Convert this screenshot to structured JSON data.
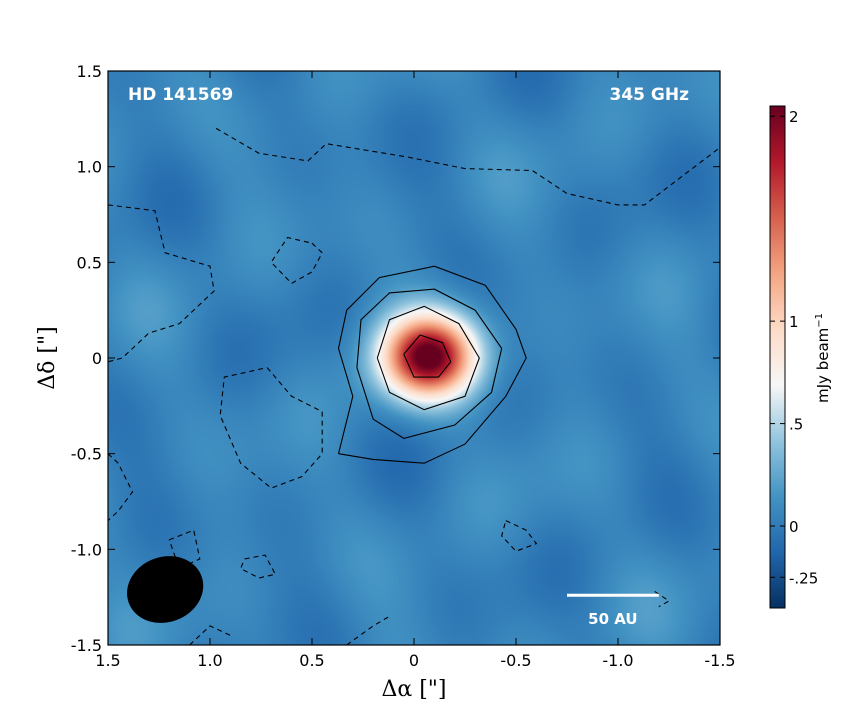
{
  "chart_data": {
    "type": "heatmap",
    "title": "",
    "target_label": "HD 141569",
    "frequency_label": "345 GHz",
    "xlabel": "Δα [\"]",
    "ylabel": "Δδ [\"]",
    "xlim": [
      1.5,
      -1.5
    ],
    "ylim": [
      -1.5,
      1.5
    ],
    "x_ticks": [
      1.5,
      1.0,
      0.5,
      0.0,
      -0.5,
      -1.0,
      -1.5
    ],
    "x_tick_labels": [
      "1.5",
      "1.0",
      "0.5",
      "0",
      "-0.5",
      "-1.0",
      "-1.5"
    ],
    "y_ticks": [
      1.5,
      1.0,
      0.5,
      0.0,
      -0.5,
      -1.0,
      -1.5
    ],
    "y_tick_labels": [
      "1.5",
      "1.0",
      "0.5",
      "0",
      "-0.5",
      "-1.0",
      "-1.5"
    ],
    "colorbar": {
      "label": "mJy beam−1",
      "range": [
        -0.4,
        2.05
      ],
      "ticks": [
        2,
        1,
        0.5,
        0,
        -0.25
      ],
      "tick_labels": [
        "2",
        "1",
        ".5",
        "0",
        "-.25"
      ],
      "colormap": [
        "#053061",
        "#2166ac",
        "#4393c3",
        "#92c5de",
        "#f7f7f7",
        "#fddbc7",
        "#f4a582",
        "#d6604d",
        "#b2182b",
        "#67001f"
      ]
    },
    "source": {
      "x": -0.07,
      "y": 0.01,
      "peak": 2.0,
      "sigma_x": 0.16,
      "sigma_y": 0.15
    },
    "background_level": 0.05,
    "contour_levels_solid": [
      0.3,
      0.7,
      1.2,
      1.7
    ],
    "contour_levels_dashed": [
      -0.15
    ],
    "solid_contours": [
      [
        [
          0.37,
          -0.5
        ],
        [
          0.3,
          -0.2
        ],
        [
          0.37,
          0.05
        ],
        [
          0.33,
          0.25
        ],
        [
          0.17,
          0.42
        ],
        [
          -0.1,
          0.48
        ],
        [
          -0.35,
          0.38
        ],
        [
          -0.5,
          0.15
        ],
        [
          -0.55,
          0.0
        ],
        [
          -0.45,
          -0.2
        ],
        [
          -0.25,
          -0.45
        ],
        [
          -0.05,
          -0.55
        ],
        [
          0.2,
          -0.53
        ],
        [
          0.37,
          -0.5
        ]
      ],
      [
        [
          0.28,
          -0.05
        ],
        [
          0.26,
          0.2
        ],
        [
          0.12,
          0.34
        ],
        [
          -0.1,
          0.36
        ],
        [
          -0.3,
          0.25
        ],
        [
          -0.43,
          0.05
        ],
        [
          -0.38,
          -0.18
        ],
        [
          -0.2,
          -0.35
        ],
        [
          0.05,
          -0.42
        ],
        [
          0.2,
          -0.32
        ],
        [
          0.28,
          -0.05
        ]
      ],
      [
        [
          0.18,
          0.0
        ],
        [
          0.12,
          0.2
        ],
        [
          -0.05,
          0.27
        ],
        [
          -0.22,
          0.18
        ],
        [
          -0.32,
          0.0
        ],
        [
          -0.25,
          -0.2
        ],
        [
          -0.05,
          -0.27
        ],
        [
          0.12,
          -0.18
        ],
        [
          0.18,
          0.0
        ]
      ],
      [
        [
          0.05,
          0.02
        ],
        [
          -0.03,
          0.12
        ],
        [
          -0.14,
          0.08
        ],
        [
          -0.18,
          -0.02
        ],
        [
          -0.12,
          -0.1
        ],
        [
          0.0,
          -0.1
        ],
        [
          0.05,
          0.02
        ]
      ]
    ],
    "dashed_contours": [
      [
        [
          1.5,
          0.8
        ],
        [
          1.27,
          0.77
        ],
        [
          1.22,
          0.55
        ],
        [
          1.0,
          0.48
        ],
        [
          0.98,
          0.35
        ],
        [
          1.15,
          0.18
        ],
        [
          1.3,
          0.13
        ],
        [
          1.43,
          0.0
        ],
        [
          1.5,
          -0.02
        ]
      ],
      [
        [
          0.5,
          0.6
        ],
        [
          0.45,
          0.55
        ],
        [
          0.5,
          0.45
        ],
        [
          0.6,
          0.39
        ],
        [
          0.7,
          0.5
        ],
        [
          0.62,
          0.63
        ],
        [
          0.5,
          0.6
        ]
      ],
      [
        [
          0.72,
          -0.05
        ],
        [
          0.6,
          -0.2
        ],
        [
          0.45,
          -0.28
        ],
        [
          0.45,
          -0.5
        ],
        [
          0.55,
          -0.62
        ],
        [
          0.7,
          -0.68
        ],
        [
          0.85,
          -0.55
        ],
        [
          0.95,
          -0.3
        ],
        [
          0.93,
          -0.1
        ],
        [
          0.72,
          -0.05
        ]
      ],
      [
        [
          0.97,
          1.2
        ],
        [
          0.76,
          1.07
        ],
        [
          0.52,
          1.03
        ],
        [
          0.43,
          1.12
        ],
        [
          0.03,
          1.05
        ],
        [
          -0.25,
          0.99
        ],
        [
          -0.58,
          0.98
        ],
        [
          -0.75,
          0.86
        ],
        [
          -1.0,
          0.8
        ],
        [
          -1.13,
          0.8
        ],
        [
          -1.5,
          1.1
        ]
      ],
      [
        [
          1.5,
          -0.5
        ],
        [
          1.45,
          -0.55
        ],
        [
          1.38,
          -0.7
        ],
        [
          1.45,
          -0.8
        ],
        [
          1.5,
          -0.85
        ]
      ],
      [
        [
          -0.45,
          -0.85
        ],
        [
          -0.55,
          -0.9
        ],
        [
          -0.6,
          -0.97
        ],
        [
          -0.5,
          -1.01
        ],
        [
          -0.43,
          -0.93
        ],
        [
          -0.45,
          -0.85
        ]
      ],
      [
        [
          1.2,
          -0.95
        ],
        [
          1.08,
          -0.9
        ],
        [
          1.05,
          -1.05
        ],
        [
          1.15,
          -1.1
        ],
        [
          1.2,
          -0.95
        ]
      ],
      [
        [
          0.83,
          -1.05
        ],
        [
          0.73,
          -1.03
        ],
        [
          0.68,
          -1.13
        ],
        [
          0.76,
          -1.15
        ],
        [
          0.85,
          -1.1
        ],
        [
          0.83,
          -1.05
        ]
      ],
      [
        [
          1.1,
          -1.5
        ],
        [
          1.0,
          -1.4
        ],
        [
          0.9,
          -1.45
        ]
      ],
      [
        [
          0.33,
          -1.5
        ],
        [
          0.2,
          -1.4
        ],
        [
          0.12,
          -1.35
        ]
      ],
      [
        [
          -1.18,
          -1.22
        ],
        [
          -1.25,
          -1.27
        ],
        [
          -1.2,
          -1.3
        ]
      ]
    ],
    "beam": {
      "x": 1.22,
      "y": -1.21,
      "major_arcsec": 0.38,
      "minor_arcsec": 0.32,
      "pa_deg": 20,
      "color": "#000000"
    },
    "scale_bar": {
      "label": "50 AU",
      "x_start": -0.75,
      "length_arcsec": 0.45,
      "y": -1.24,
      "color": "#ffffff"
    }
  }
}
